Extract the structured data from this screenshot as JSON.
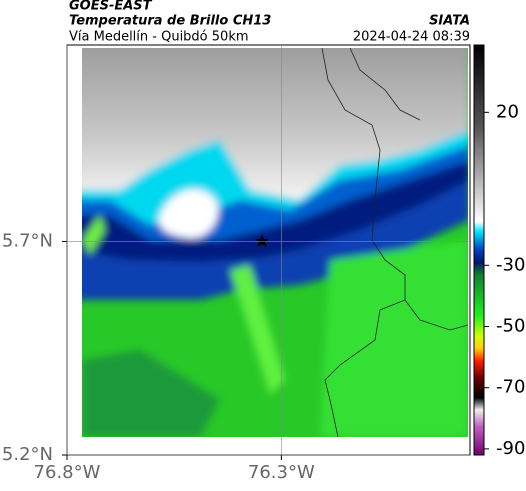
{
  "header": {
    "title": "GOES-EAST",
    "subtitle": "Temperatura de Brillo CH13",
    "source": "SIATA",
    "region": "Vía Medellín - Quibdó 50km",
    "timestamp": "2024-04-24 08:39"
  },
  "map": {
    "latlim": [
      5.2,
      6.16
    ],
    "lonlim": [
      -76.8,
      -75.86
    ],
    "lat_ticks": [
      {
        "value": 5.7,
        "label": "5.7°N"
      },
      {
        "value": 5.2,
        "label": "5.2°N"
      }
    ],
    "lon_ticks": [
      {
        "value": -76.8,
        "label": "76.8°W"
      },
      {
        "value": -76.3,
        "label": "76.3°W"
      }
    ]
  },
  "colorbar": {
    "lim": [
      -92,
      42
    ],
    "ticks": [
      20,
      -30,
      -50,
      -70,
      -90
    ]
  }
}
